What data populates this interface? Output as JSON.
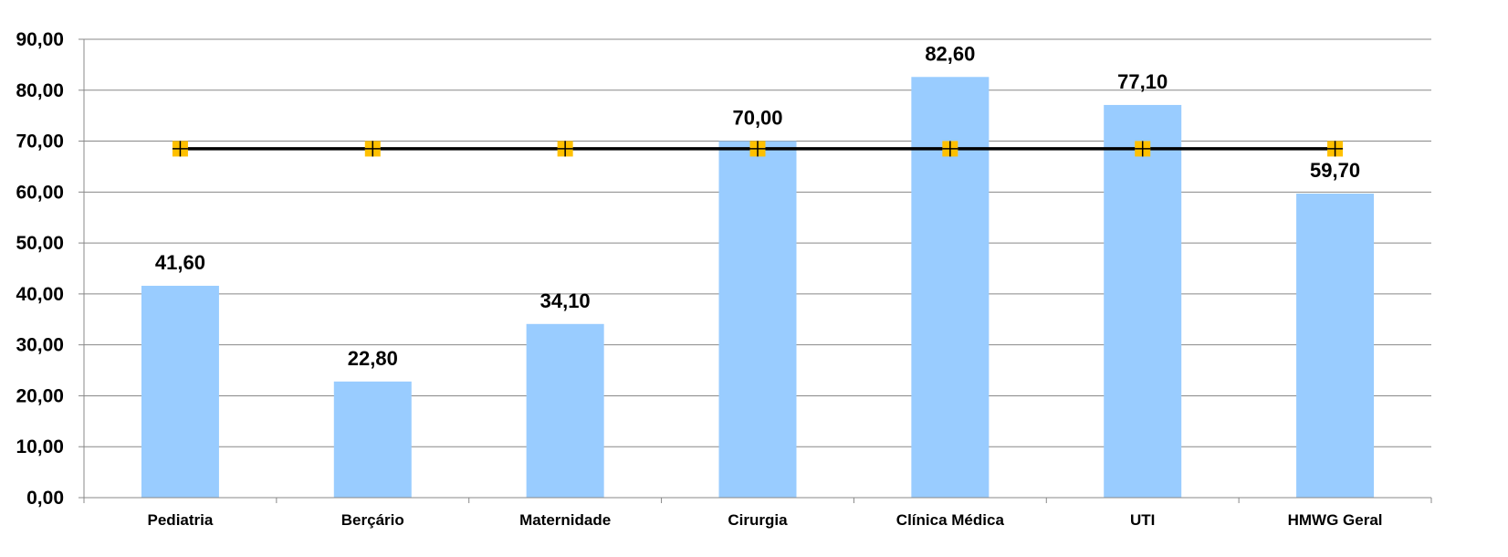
{
  "chart_data": {
    "type": "bar",
    "categories": [
      "Pediatria",
      "Berçário",
      "Maternidade",
      "Cirurgia",
      "Clínica Médica",
      "UTI",
      "HMWG Geral"
    ],
    "series": [
      {
        "type": "bar",
        "values": [
          41.6,
          22.8,
          34.1,
          70.0,
          82.6,
          77.1,
          59.7
        ],
        "value_labels": [
          "41,60",
          "22,80",
          "34,10",
          "70,00",
          "82,60",
          "77,10",
          "59,70"
        ],
        "color": "#99CCFF"
      },
      {
        "type": "line",
        "values": [
          68.5,
          68.5,
          68.5,
          68.5,
          68.5,
          68.5,
          68.5
        ],
        "color": "#000000",
        "marker": "square-cross",
        "marker_color": "#FFC000"
      }
    ],
    "ylim": [
      0,
      90
    ],
    "y_ticks": [
      0,
      10,
      20,
      30,
      40,
      50,
      60,
      70,
      80,
      90
    ],
    "y_tick_labels": [
      "0,00",
      "10,00",
      "20,00",
      "30,00",
      "40,00",
      "50,00",
      "60,00",
      "70,00",
      "80,00",
      "90,00"
    ],
    "grid": true,
    "legend": "none",
    "title": "",
    "xlabel": "",
    "ylabel": ""
  }
}
